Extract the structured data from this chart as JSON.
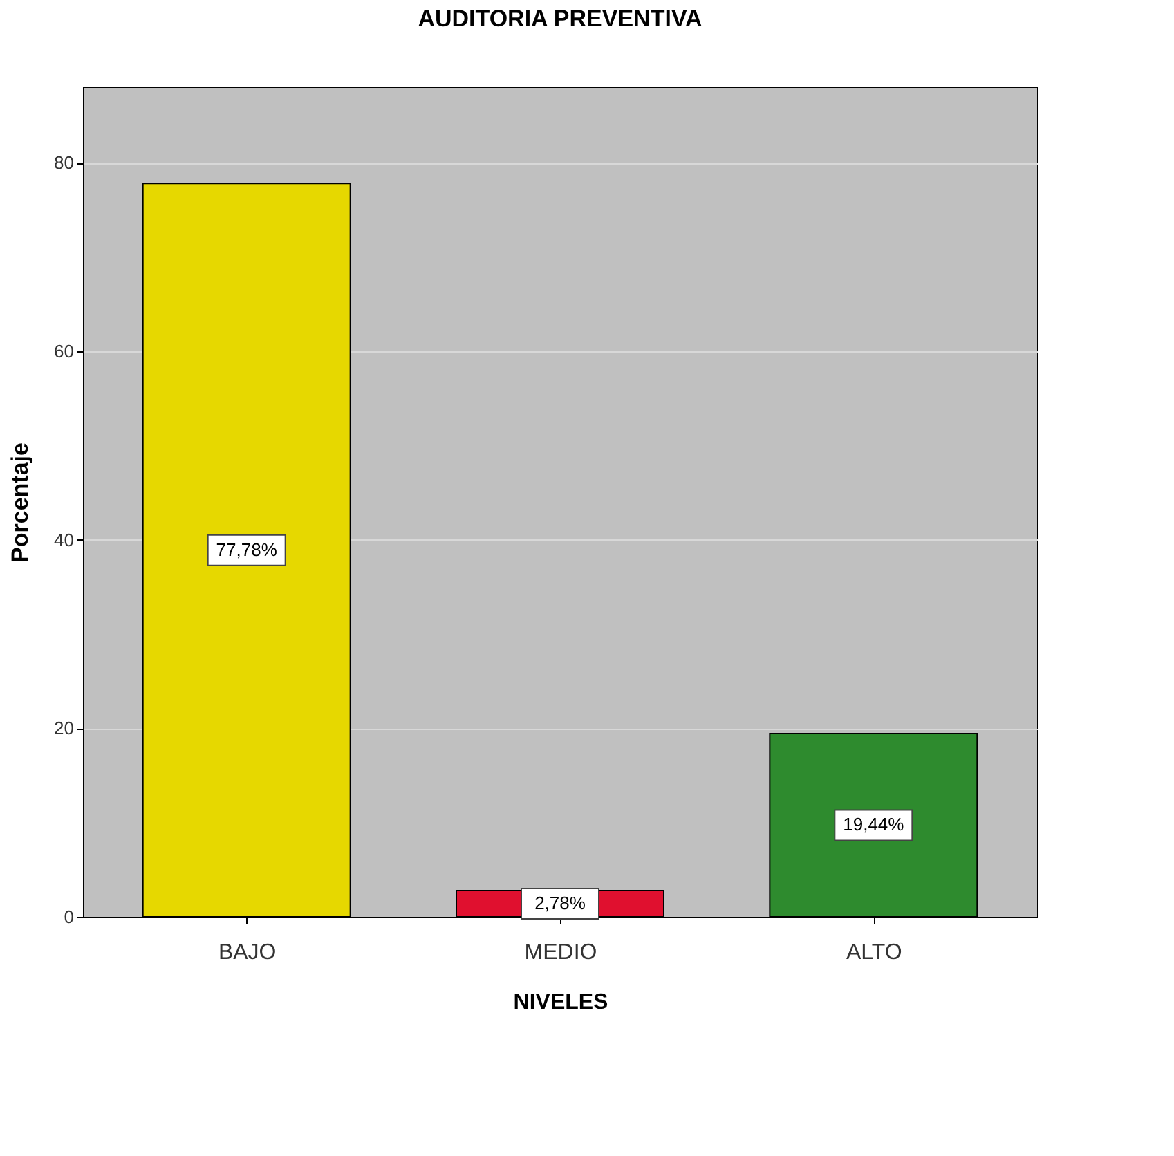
{
  "chart_data": {
    "type": "bar",
    "title": "AUDITORIA PREVENTIVA",
    "xlabel": "NIVELES",
    "ylabel": "Porcentaje",
    "categories": [
      "BAJO",
      "MEDIO",
      "ALTO"
    ],
    "values": [
      77.78,
      2.78,
      19.44
    ],
    "colors": [
      "#e6d800",
      "#e0102f",
      "#2e8b2e"
    ],
    "value_labels": [
      "77,78%",
      "2,78%",
      "19,44%"
    ],
    "ylim": [
      0,
      88
    ],
    "yticks": [
      0,
      20,
      40,
      60,
      80
    ],
    "grid": "y",
    "legend": false
  }
}
